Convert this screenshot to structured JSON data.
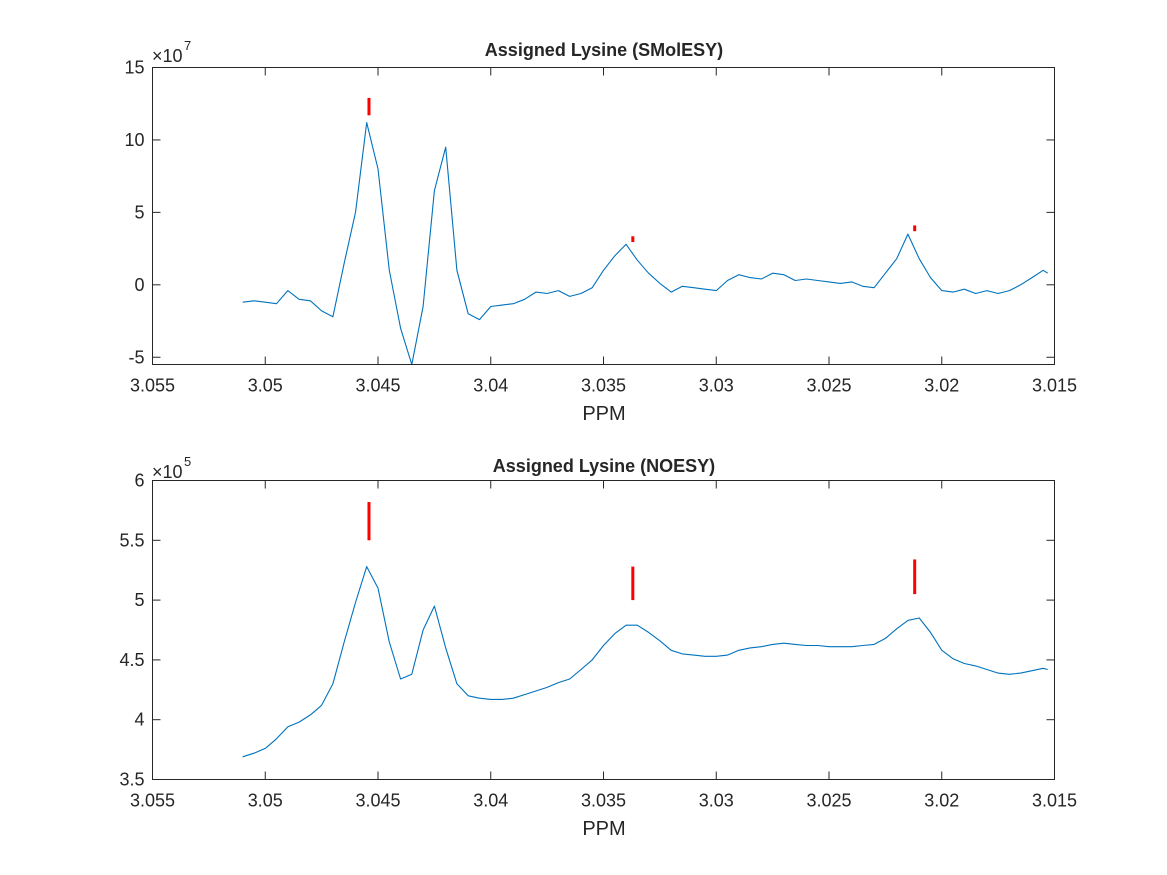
{
  "chart_data": [
    {
      "type": "line",
      "title": "Assigned Lysine (SMolESY)",
      "xlabel": "PPM",
      "ylabel": "",
      "y_exponent_base": "×10",
      "y_exponent_power": "7",
      "xlim": [
        3.055,
        3.015
      ],
      "x_reversed": true,
      "ylim": [
        -5.5,
        15
      ],
      "xticks": [
        3.055,
        3.05,
        3.045,
        3.04,
        3.035,
        3.03,
        3.025,
        3.02,
        3.015
      ],
      "xtick_labels": [
        "3.055",
        "3.05",
        "3.045",
        "3.04",
        "3.035",
        "3.03",
        "3.025",
        "3.02",
        "3.015"
      ],
      "yticks": [
        -5,
        0,
        5,
        10,
        15
      ],
      "ytick_labels": [
        "-5",
        "0",
        "5",
        "10",
        "15"
      ],
      "grid": false,
      "series": [
        {
          "color": "#0072bd",
          "x": [
            3.051,
            3.0505,
            3.05,
            3.0495,
            3.049,
            3.0485,
            3.048,
            3.0475,
            3.047,
            3.0465,
            3.046,
            3.0455,
            3.045,
            3.0445,
            3.044,
            3.0435,
            3.043,
            3.0425,
            3.042,
            3.0415,
            3.041,
            3.0405,
            3.04,
            3.0395,
            3.039,
            3.0385,
            3.038,
            3.0375,
            3.037,
            3.0365,
            3.036,
            3.0355,
            3.035,
            3.0345,
            3.034,
            3.0335,
            3.033,
            3.0325,
            3.032,
            3.0315,
            3.031,
            3.0305,
            3.03,
            3.0295,
            3.029,
            3.0285,
            3.028,
            3.0275,
            3.027,
            3.0265,
            3.026,
            3.0255,
            3.025,
            3.0245,
            3.024,
            3.0235,
            3.023,
            3.0225,
            3.022,
            3.0215,
            3.021,
            3.0205,
            3.02,
            3.0195,
            3.019,
            3.0185,
            3.018,
            3.0175,
            3.017,
            3.0165,
            3.016,
            3.0155,
            3.0153
          ],
          "y": [
            -1.2,
            -1.1,
            -1.2,
            -1.3,
            -0.4,
            -1.0,
            -1.1,
            -1.8,
            -2.2,
            1.5,
            5.0,
            11.2,
            8.0,
            1.0,
            -3.0,
            -5.5,
            -1.5,
            6.5,
            9.5,
            1.0,
            -2.0,
            -2.4,
            -1.5,
            -1.4,
            -1.3,
            -1.0,
            -0.5,
            -0.6,
            -0.4,
            -0.8,
            -0.6,
            -0.2,
            1.0,
            2.0,
            2.8,
            1.7,
            0.8,
            0.1,
            -0.5,
            -0.1,
            -0.2,
            -0.3,
            -0.4,
            0.3,
            0.7,
            0.5,
            0.4,
            0.8,
            0.7,
            0.3,
            0.4,
            0.3,
            0.2,
            0.1,
            0.2,
            -0.1,
            -0.2,
            0.8,
            1.8,
            3.5,
            1.8,
            0.5,
            -0.4,
            -0.5,
            -0.3,
            -0.6,
            -0.4,
            -0.6,
            -0.4,
            0.0,
            0.5,
            1.0,
            0.8
          ]
        }
      ],
      "markers": {
        "color": "#ff0000",
        "items": [
          {
            "x": 3.0454,
            "y0": 11.7,
            "y1": 12.9
          },
          {
            "x": 3.0337,
            "y0": 2.95,
            "y1": 3.35
          },
          {
            "x": 3.0212,
            "y0": 3.7,
            "y1": 4.1
          }
        ]
      }
    },
    {
      "type": "line",
      "title": "Assigned Lysine (NOESY)",
      "xlabel": "PPM",
      "ylabel": "",
      "y_exponent_base": "×10",
      "y_exponent_power": "5",
      "xlim": [
        3.055,
        3.015
      ],
      "x_reversed": true,
      "ylim": [
        3.5,
        6
      ],
      "xticks": [
        3.055,
        3.05,
        3.045,
        3.04,
        3.035,
        3.03,
        3.025,
        3.02,
        3.015
      ],
      "xtick_labels": [
        "3.055",
        "3.05",
        "3.045",
        "3.04",
        "3.035",
        "3.03",
        "3.025",
        "3.02",
        "3.015"
      ],
      "yticks": [
        3.5,
        4,
        4.5,
        5,
        5.5,
        6
      ],
      "ytick_labels": [
        "3.5",
        "4",
        "4.5",
        "5",
        "5.5",
        "6"
      ],
      "grid": false,
      "series": [
        {
          "color": "#0072bd",
          "x": [
            3.051,
            3.0505,
            3.05,
            3.0495,
            3.049,
            3.0485,
            3.048,
            3.0475,
            3.047,
            3.0465,
            3.046,
            3.0455,
            3.045,
            3.0445,
            3.044,
            3.0435,
            3.043,
            3.0425,
            3.042,
            3.0415,
            3.041,
            3.0405,
            3.04,
            3.0395,
            3.039,
            3.0385,
            3.038,
            3.0375,
            3.037,
            3.0365,
            3.036,
            3.0355,
            3.035,
            3.0345,
            3.034,
            3.0335,
            3.033,
            3.0325,
            3.032,
            3.0315,
            3.031,
            3.0305,
            3.03,
            3.0295,
            3.029,
            3.0285,
            3.028,
            3.0275,
            3.027,
            3.0265,
            3.026,
            3.0255,
            3.025,
            3.0245,
            3.024,
            3.0235,
            3.023,
            3.0225,
            3.022,
            3.0215,
            3.021,
            3.0205,
            3.02,
            3.0195,
            3.019,
            3.0185,
            3.018,
            3.0175,
            3.017,
            3.0165,
            3.016,
            3.0155,
            3.0153
          ],
          "y": [
            3.69,
            3.72,
            3.76,
            3.84,
            3.94,
            3.98,
            4.04,
            4.12,
            4.3,
            4.65,
            4.98,
            5.28,
            5.1,
            4.65,
            4.34,
            4.38,
            4.75,
            4.95,
            4.6,
            4.3,
            4.2,
            4.18,
            4.17,
            4.17,
            4.18,
            4.21,
            4.24,
            4.27,
            4.31,
            4.34,
            4.42,
            4.5,
            4.62,
            4.72,
            4.79,
            4.79,
            4.73,
            4.66,
            4.58,
            4.55,
            4.54,
            4.53,
            4.53,
            4.54,
            4.58,
            4.6,
            4.61,
            4.63,
            4.64,
            4.63,
            4.62,
            4.62,
            4.61,
            4.61,
            4.61,
            4.62,
            4.63,
            4.68,
            4.76,
            4.83,
            4.85,
            4.73,
            4.58,
            4.51,
            4.47,
            4.45,
            4.42,
            4.39,
            4.38,
            4.39,
            4.41,
            4.43,
            4.42
          ]
        }
      ],
      "markers": {
        "color": "#ff0000",
        "items": [
          {
            "x": 3.0454,
            "y0": 5.5,
            "y1": 5.82
          },
          {
            "x": 3.0337,
            "y0": 5.0,
            "y1": 5.28
          },
          {
            "x": 3.0212,
            "y0": 5.05,
            "y1": 5.34
          }
        ]
      }
    }
  ]
}
